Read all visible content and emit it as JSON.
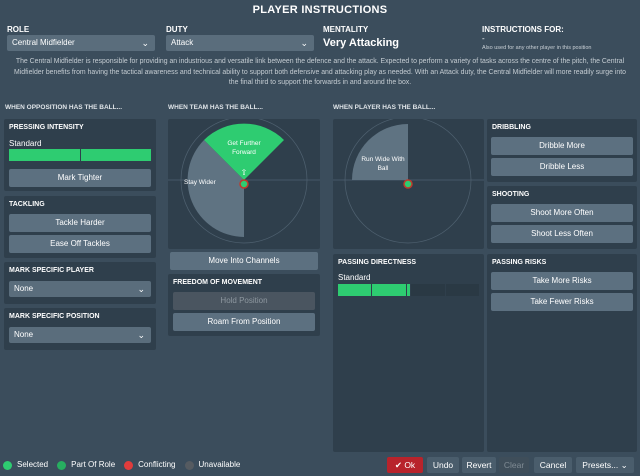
{
  "title": "PLAYER INSTRUCTIONS",
  "role": {
    "label": "ROLE",
    "value": "Central Midfielder"
  },
  "duty": {
    "label": "DUTY",
    "value": "Attack"
  },
  "mentality": {
    "label": "MENTALITY",
    "value": "Very Attacking"
  },
  "instructions_for": {
    "label": "INSTRUCTIONS FOR:",
    "value": "-",
    "note": "Also used for any other player in this position"
  },
  "description": "The Central Midfielder is responsible for providing an industrious and versatile link between the defence and the attack. Expected to perform a variety of tasks across the centre of the pitch, the Central Midfielder benefits from having the tactical awareness and technical ability to support both defensive and attacking play as needed. With an Attack duty, the Central Midfielder will more readily surge into the final third to support the forwards in and around the box.",
  "sections": {
    "opposition": "WHEN OPPOSITION HAS THE BALL...",
    "team": "WHEN TEAM HAS THE BALL...",
    "player": "WHEN PLAYER HAS THE BALL..."
  },
  "pressing": {
    "title": "PRESSING INTENSITY",
    "level_label": "Standard",
    "level_fraction": 1.0,
    "button": "Mark Tighter"
  },
  "tackling": {
    "title": "TACKLING",
    "buttons": [
      "Tackle Harder",
      "Ease Off Tackles"
    ]
  },
  "mark_player": {
    "title": "MARK SPECIFIC PLAYER",
    "value": "None"
  },
  "mark_position": {
    "title": "MARK SPECIFIC POSITION",
    "value": "None"
  },
  "team_pitch": {
    "zone_top": "Get Further Forward",
    "zone_left": "Stay Wider",
    "button": "Move Into Channels"
  },
  "freedom": {
    "title": "FREEDOM OF MOVEMENT",
    "buttons": [
      "Hold Position",
      "Roam From Position"
    ]
  },
  "player_pitch": {
    "zone_left": "Run Wide With Ball"
  },
  "passing_directness": {
    "title": "PASSING DIRECTNESS",
    "level_label": "Standard",
    "segments_on": 3,
    "segments_total": 5
  },
  "dribbling": {
    "title": "DRIBBLING",
    "buttons": [
      "Dribble More",
      "Dribble Less"
    ]
  },
  "shooting": {
    "title": "SHOOTING",
    "buttons": [
      "Shoot More Often",
      "Shoot Less Often"
    ]
  },
  "passing_risks": {
    "title": "PASSING RISKS",
    "buttons": [
      "Take More Risks",
      "Take Fewer Risks"
    ]
  },
  "legend": [
    {
      "label": "Selected",
      "color": "#2ecc71"
    },
    {
      "label": "Part Of Role",
      "color": "#27ae60"
    },
    {
      "label": "Conflicting",
      "color": "#e03c3c"
    },
    {
      "label": "Unavailable",
      "color": "#555b61"
    }
  ],
  "footer": {
    "ok": "Ok",
    "undo": "Undo",
    "revert": "Revert",
    "clear": "Clear",
    "cancel": "Cancel",
    "presets": "Presets..."
  },
  "colors": {
    "accent_green": "#2ecc71",
    "ok_red": "#b8232b"
  }
}
